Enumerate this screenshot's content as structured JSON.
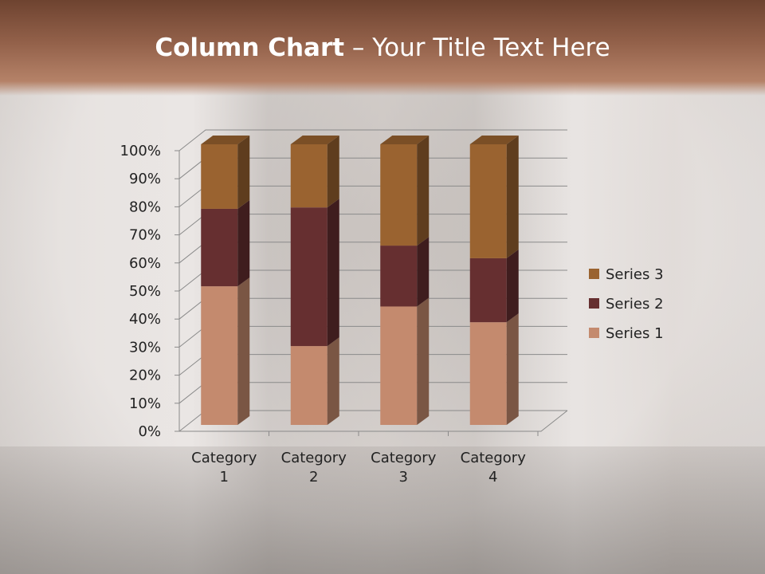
{
  "slide": {
    "title_bold": "Column Chart",
    "title_rest": " – Your Title Text Here"
  },
  "colors": {
    "series1": "#c48a6e",
    "series2": "#662f30",
    "series3": "#9a6330",
    "header": "#8a5a42"
  },
  "chart_data": {
    "type": "bar",
    "stacked": "percent",
    "3d": true,
    "categories": [
      "Category 1",
      "Category 2",
      "Category 3",
      "Category 4"
    ],
    "category_lines": [
      [
        "Category",
        "1"
      ],
      [
        "Category",
        "2"
      ],
      [
        "Category",
        "3"
      ],
      [
        "Category",
        "4"
      ]
    ],
    "series": [
      {
        "name": "Series 1",
        "values": [
          49.4,
          28.1,
          42.2,
          36.6
        ]
      },
      {
        "name": "Series 2",
        "values": [
          27.6,
          49.4,
          21.7,
          22.8
        ]
      },
      {
        "name": "Series 3",
        "values": [
          23.0,
          22.5,
          36.1,
          40.6
        ]
      }
    ],
    "yticks": [
      "0%",
      "10%",
      "20%",
      "30%",
      "40%",
      "50%",
      "60%",
      "70%",
      "80%",
      "90%",
      "100%"
    ],
    "ylim": [
      0,
      100
    ],
    "grid": true,
    "legend": "right"
  }
}
